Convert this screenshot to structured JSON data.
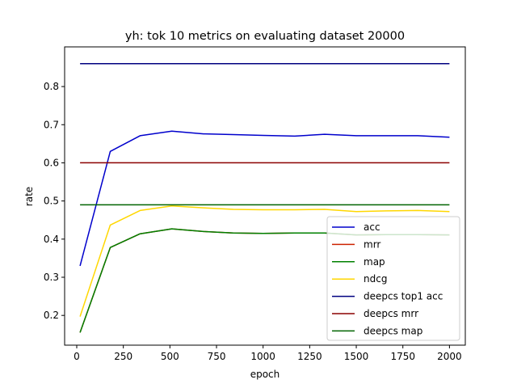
{
  "chart_data": {
    "type": "line",
    "title": "yh: tok 10 metrics on evaluating dataset 20000",
    "xlabel": "epoch",
    "ylabel": "rate",
    "xlim": [
      -65,
      2085
    ],
    "ylim": [
      0.122,
      0.904
    ],
    "xticks": [
      0,
      250,
      500,
      750,
      1000,
      1250,
      1500,
      1750,
      2000
    ],
    "yticks": [
      0.2,
      0.3,
      0.4,
      0.5,
      0.6,
      0.7,
      0.8
    ],
    "grid": false,
    "legend_position": "lower right",
    "series": [
      {
        "name": "acc",
        "color": "#0000cc",
        "x": [
          18,
          180,
          340,
          510,
          680,
          840,
          1000,
          1170,
          1330,
          1500,
          1660,
          1830,
          2000
        ],
        "y": [
          0.33,
          0.63,
          0.671,
          0.683,
          0.676,
          0.674,
          0.672,
          0.67,
          0.675,
          0.671,
          0.671,
          0.671,
          0.667
        ]
      },
      {
        "name": "mrr",
        "color": "#cc2200",
        "x": [
          18,
          180,
          340,
          510,
          680,
          840,
          1000,
          1170,
          1330,
          1500,
          1660,
          1830,
          2000
        ],
        "y": [
          0.155,
          0.378,
          0.414,
          0.427,
          0.42,
          0.416,
          0.415,
          0.416,
          0.416,
          0.411,
          0.412,
          0.412,
          0.411
        ]
      },
      {
        "name": "map",
        "color": "#008000",
        "x": [
          18,
          180,
          340,
          510,
          680,
          840,
          1000,
          1170,
          1330,
          1500,
          1660,
          1830,
          2000
        ],
        "y": [
          0.155,
          0.378,
          0.414,
          0.427,
          0.42,
          0.416,
          0.415,
          0.416,
          0.416,
          0.411,
          0.412,
          0.412,
          0.411
        ]
      },
      {
        "name": "ndcg",
        "color": "#ffd700",
        "x": [
          18,
          180,
          340,
          510,
          680,
          840,
          1000,
          1170,
          1330,
          1500,
          1660,
          1830,
          2000
        ],
        "y": [
          0.197,
          0.437,
          0.475,
          0.487,
          0.482,
          0.478,
          0.477,
          0.477,
          0.478,
          0.472,
          0.474,
          0.475,
          0.472
        ]
      },
      {
        "name": "deepcs top1 acc",
        "color": "#000080",
        "x": [
          18,
          2000
        ],
        "y": [
          0.86,
          0.86
        ]
      },
      {
        "name": "deepcs mrr",
        "color": "#8b0000",
        "x": [
          18,
          2000
        ],
        "y": [
          0.6,
          0.6
        ]
      },
      {
        "name": "deepcs map",
        "color": "#006400",
        "x": [
          18,
          2000
        ],
        "y": [
          0.49,
          0.49
        ]
      }
    ]
  }
}
